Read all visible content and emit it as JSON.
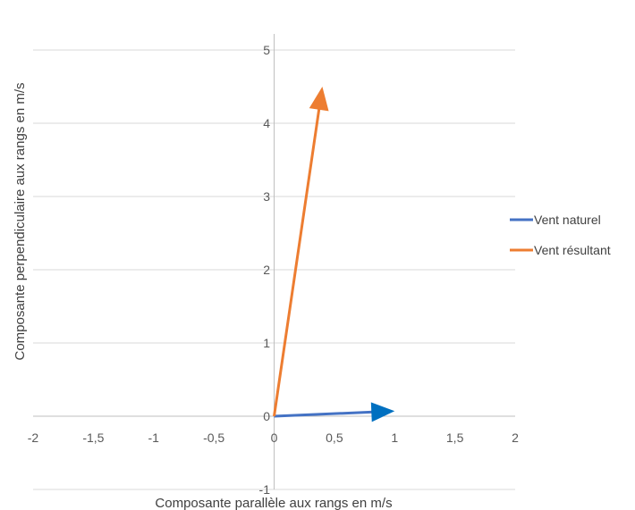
{
  "chart_data": {
    "type": "scatter",
    "title": "",
    "xlabel": "Composante parallèle aux rangs en m/s",
    "ylabel": "Composante perpendiculaire aux rangs en m/s",
    "xlim": [
      -2,
      2
    ],
    "ylim": [
      -1,
      5.5
    ],
    "x_ticks": [
      {
        "v": -2,
        "label": "-2"
      },
      {
        "v": -1.5,
        "label": "-1,5"
      },
      {
        "v": -1,
        "label": "-1"
      },
      {
        "v": -0.5,
        "label": "-0,5"
      },
      {
        "v": 0,
        "label": "0"
      },
      {
        "v": 0.5,
        "label": "0,5"
      },
      {
        "v": 1,
        "label": "1"
      },
      {
        "v": 1.5,
        "label": "1,5"
      },
      {
        "v": 2,
        "label": "2"
      }
    ],
    "y_ticks": [
      {
        "v": -1,
        "label": "-1"
      },
      {
        "v": 0,
        "label": "0"
      },
      {
        "v": 1,
        "label": "1"
      },
      {
        "v": 2,
        "label": "2"
      },
      {
        "v": 3,
        "label": "3"
      },
      {
        "v": 4,
        "label": "4"
      },
      {
        "v": 5,
        "label": "5"
      }
    ],
    "grid": true,
    "legend_position": "right",
    "series": [
      {
        "name": "Vent naturel",
        "color": "#4472C4",
        "arrow_color": "#0070C0",
        "points": [
          {
            "x": 0,
            "y": 0
          },
          {
            "x": 1,
            "y": 0.07
          }
        ]
      },
      {
        "name": "Vent résultant",
        "color": "#ED7D31",
        "arrow_color": "#ED7D31",
        "points": [
          {
            "x": 0,
            "y": 0
          },
          {
            "x": 0.4,
            "y": 4.5
          }
        ]
      }
    ]
  }
}
